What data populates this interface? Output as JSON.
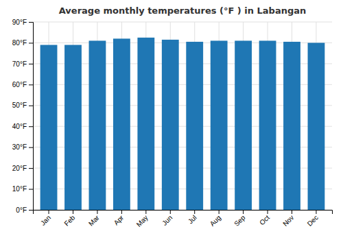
{
  "chart_data": {
    "type": "bar",
    "title": "Average monthly temperatures (°F ) in Labangan",
    "categories": [
      "Jan",
      "Feb",
      "Mar",
      "Apr",
      "May",
      "Jun",
      "Jul",
      "Aug",
      "Sep",
      "Oct",
      "Nov",
      "Dec"
    ],
    "values": [
      79,
      79,
      81,
      82,
      82.5,
      81.5,
      80.5,
      81,
      81,
      81,
      80.5,
      80
    ],
    "ylim": [
      0,
      90
    ],
    "yticks": [
      {
        "value": 0,
        "label": "0°F"
      },
      {
        "value": 10,
        "label": "10°F"
      },
      {
        "value": 20,
        "label": "20°F"
      },
      {
        "value": 30,
        "label": "30°F"
      },
      {
        "value": 40,
        "label": "40°F"
      },
      {
        "value": 50,
        "label": "50°F"
      },
      {
        "value": 60,
        "label": "60°F"
      },
      {
        "value": 70,
        "label": "70°F"
      },
      {
        "value": 80,
        "label": "80°F"
      },
      {
        "value": 90,
        "label": "90°F"
      }
    ],
    "grid": true
  }
}
